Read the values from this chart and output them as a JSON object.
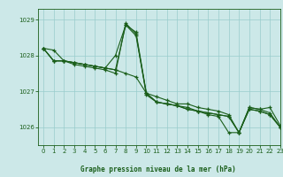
{
  "title": "Graphe pression niveau de la mer (hPa)",
  "background_color": "#cce8e8",
  "grid_color": "#99cccc",
  "line_color": "#1a5e1a",
  "marker_color": "#1a5e1a",
  "ylim": [
    1025.5,
    1029.3
  ],
  "xlim": [
    -0.5,
    23
  ],
  "yticks": [
    1026,
    1027,
    1028,
    1029
  ],
  "xticks": [
    0,
    1,
    2,
    3,
    4,
    5,
    6,
    7,
    8,
    9,
    10,
    11,
    12,
    13,
    14,
    15,
    16,
    17,
    18,
    19,
    20,
    21,
    22,
    23
  ],
  "series": [
    [
      1028.2,
      1028.15,
      1027.85,
      1027.75,
      1027.7,
      1027.65,
      1027.6,
      1027.5,
      1028.9,
      1028.6,
      1026.9,
      1026.7,
      1026.65,
      1026.6,
      1026.5,
      1026.45,
      1026.4,
      1026.35,
      1026.3,
      1025.85,
      1026.55,
      1026.5,
      1026.4,
      1026.0
    ],
    [
      1028.2,
      1027.85,
      1027.85,
      1027.8,
      1027.75,
      1027.7,
      1027.65,
      1028.0,
      1028.85,
      1028.55,
      1026.95,
      1026.85,
      1026.75,
      1026.65,
      1026.65,
      1026.55,
      1026.5,
      1026.45,
      1026.35,
      1025.85,
      1026.55,
      1026.5,
      1026.55,
      1026.05
    ],
    [
      1028.2,
      1027.85,
      1027.85,
      1027.8,
      1027.75,
      1027.7,
      1027.65,
      1027.6,
      1027.5,
      1027.4,
      1026.95,
      1026.7,
      1026.65,
      1026.6,
      1026.5,
      1026.45,
      1026.4,
      1026.35,
      1026.3,
      1025.85,
      1026.5,
      1026.45,
      1026.35,
      1026.0
    ],
    [
      1028.2,
      1027.85,
      1027.85,
      1027.8,
      1027.75,
      1027.7,
      1027.65,
      1027.6,
      1028.85,
      1028.65,
      1026.95,
      1026.7,
      1026.65,
      1026.6,
      1026.55,
      1026.45,
      1026.35,
      1026.3,
      1025.85,
      1025.85,
      1026.5,
      1026.45,
      1026.35,
      1026.0
    ]
  ]
}
